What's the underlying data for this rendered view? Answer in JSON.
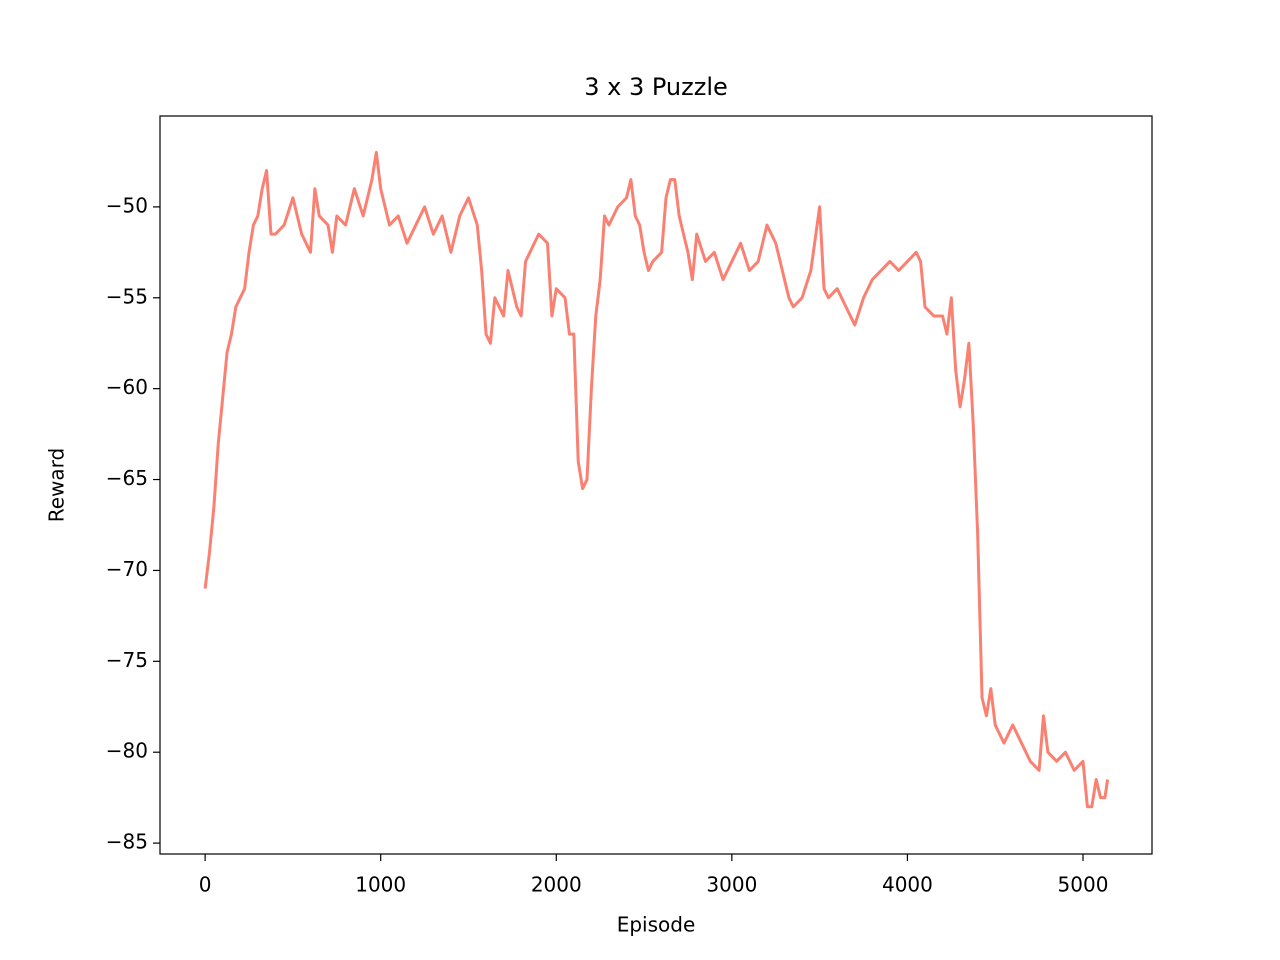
{
  "chart_data": {
    "type": "line",
    "title": "3 x 3 Puzzle",
    "x_label": "Episode",
    "y_label": "Reward",
    "xlim": [
      -257,
      5393
    ],
    "ylim": [
      -85.6,
      -45.0
    ],
    "xticks": [
      0,
      1000,
      2000,
      3000,
      4000,
      5000
    ],
    "yticks": [
      {
        "value": -85,
        "label": "−85"
      },
      {
        "value": -80,
        "label": "−80"
      },
      {
        "value": -75,
        "label": "−75"
      },
      {
        "value": -70,
        "label": "−70"
      },
      {
        "value": -65,
        "label": "−65"
      },
      {
        "value": -60,
        "label": "−60"
      },
      {
        "value": -55,
        "label": "−55"
      },
      {
        "value": -50,
        "label": "−50"
      }
    ],
    "x": [
      0,
      25,
      50,
      75,
      100,
      125,
      150,
      175,
      200,
      225,
      250,
      275,
      300,
      325,
      350,
      375,
      400,
      450,
      500,
      550,
      600,
      625,
      650,
      700,
      725,
      750,
      800,
      850,
      900,
      950,
      975,
      1000,
      1050,
      1100,
      1150,
      1200,
      1250,
      1300,
      1350,
      1400,
      1450,
      1500,
      1550,
      1575,
      1600,
      1625,
      1650,
      1700,
      1725,
      1775,
      1800,
      1825,
      1850,
      1900,
      1950,
      1975,
      2000,
      2050,
      2075,
      2100,
      2125,
      2150,
      2175,
      2200,
      2225,
      2250,
      2275,
      2300,
      2350,
      2400,
      2425,
      2450,
      2475,
      2500,
      2525,
      2550,
      2600,
      2625,
      2650,
      2675,
      2700,
      2750,
      2775,
      2800,
      2850,
      2900,
      2950,
      3000,
      3050,
      3100,
      3150,
      3200,
      3250,
      3300,
      3325,
      3350,
      3400,
      3450,
      3500,
      3525,
      3550,
      3600,
      3650,
      3700,
      3750,
      3800,
      3850,
      3900,
      3950,
      4000,
      4050,
      4075,
      4100,
      4150,
      4200,
      4225,
      4250,
      4275,
      4300,
      4325,
      4350,
      4375,
      4400,
      4425,
      4450,
      4475,
      4500,
      4550,
      4600,
      4650,
      4700,
      4750,
      4775,
      4800,
      4850,
      4900,
      4950,
      5000,
      5025,
      5050,
      5075,
      5100,
      5125,
      5140
    ],
    "series": [
      {
        "color": "#fa8072",
        "values": [
          -71,
          -69,
          -66.5,
          -63,
          -60.5,
          -58,
          -57,
          -55.5,
          -55,
          -54.5,
          -52.5,
          -51,
          -50.5,
          -49,
          -48,
          -51.5,
          -51.5,
          -51,
          -49.5,
          -51.5,
          -52.5,
          -49,
          -50.5,
          -51,
          -52.5,
          -50.5,
          -51,
          -49,
          -50.5,
          -48.5,
          -47,
          -49,
          -51,
          -50.5,
          -52,
          -51,
          -50,
          -51.5,
          -50.5,
          -52.5,
          -50.5,
          -49.5,
          -51,
          -53.5,
          -57,
          -57.5,
          -55,
          -56,
          -53.5,
          -55.5,
          -56,
          -53,
          -52.5,
          -51.5,
          -52,
          -56,
          -54.5,
          -55,
          -57,
          -57,
          -64,
          -65.5,
          -65,
          -60,
          -56,
          -54,
          -50.5,
          -51,
          -50,
          -49.5,
          -48.5,
          -50.5,
          -51,
          -52.5,
          -53.5,
          -53,
          -52.5,
          -49.5,
          -48.5,
          -48.5,
          -50.5,
          -52.5,
          -54,
          -51.5,
          -53,
          -52.5,
          -54,
          -53,
          -52,
          -53.5,
          -53,
          -51,
          -52,
          -54,
          -55,
          -55.5,
          -55,
          -53.5,
          -50,
          -54.5,
          -55,
          -54.5,
          -55.5,
          -56.5,
          -55,
          -54,
          -53.5,
          -53,
          -53.5,
          -53,
          -52.5,
          -53,
          -55.5,
          -56,
          -56,
          -57,
          -55,
          -59,
          -61,
          -59.5,
          -57.5,
          -62,
          -68,
          -77,
          -78,
          -76.5,
          -78.5,
          -79.5,
          -78.5,
          -79.5,
          -80.5,
          -81,
          -78,
          -80,
          -80.5,
          -80,
          -81,
          -80.5,
          -83,
          -83,
          -81.5,
          -82.5,
          -82.5,
          -81.5
        ]
      }
    ]
  }
}
